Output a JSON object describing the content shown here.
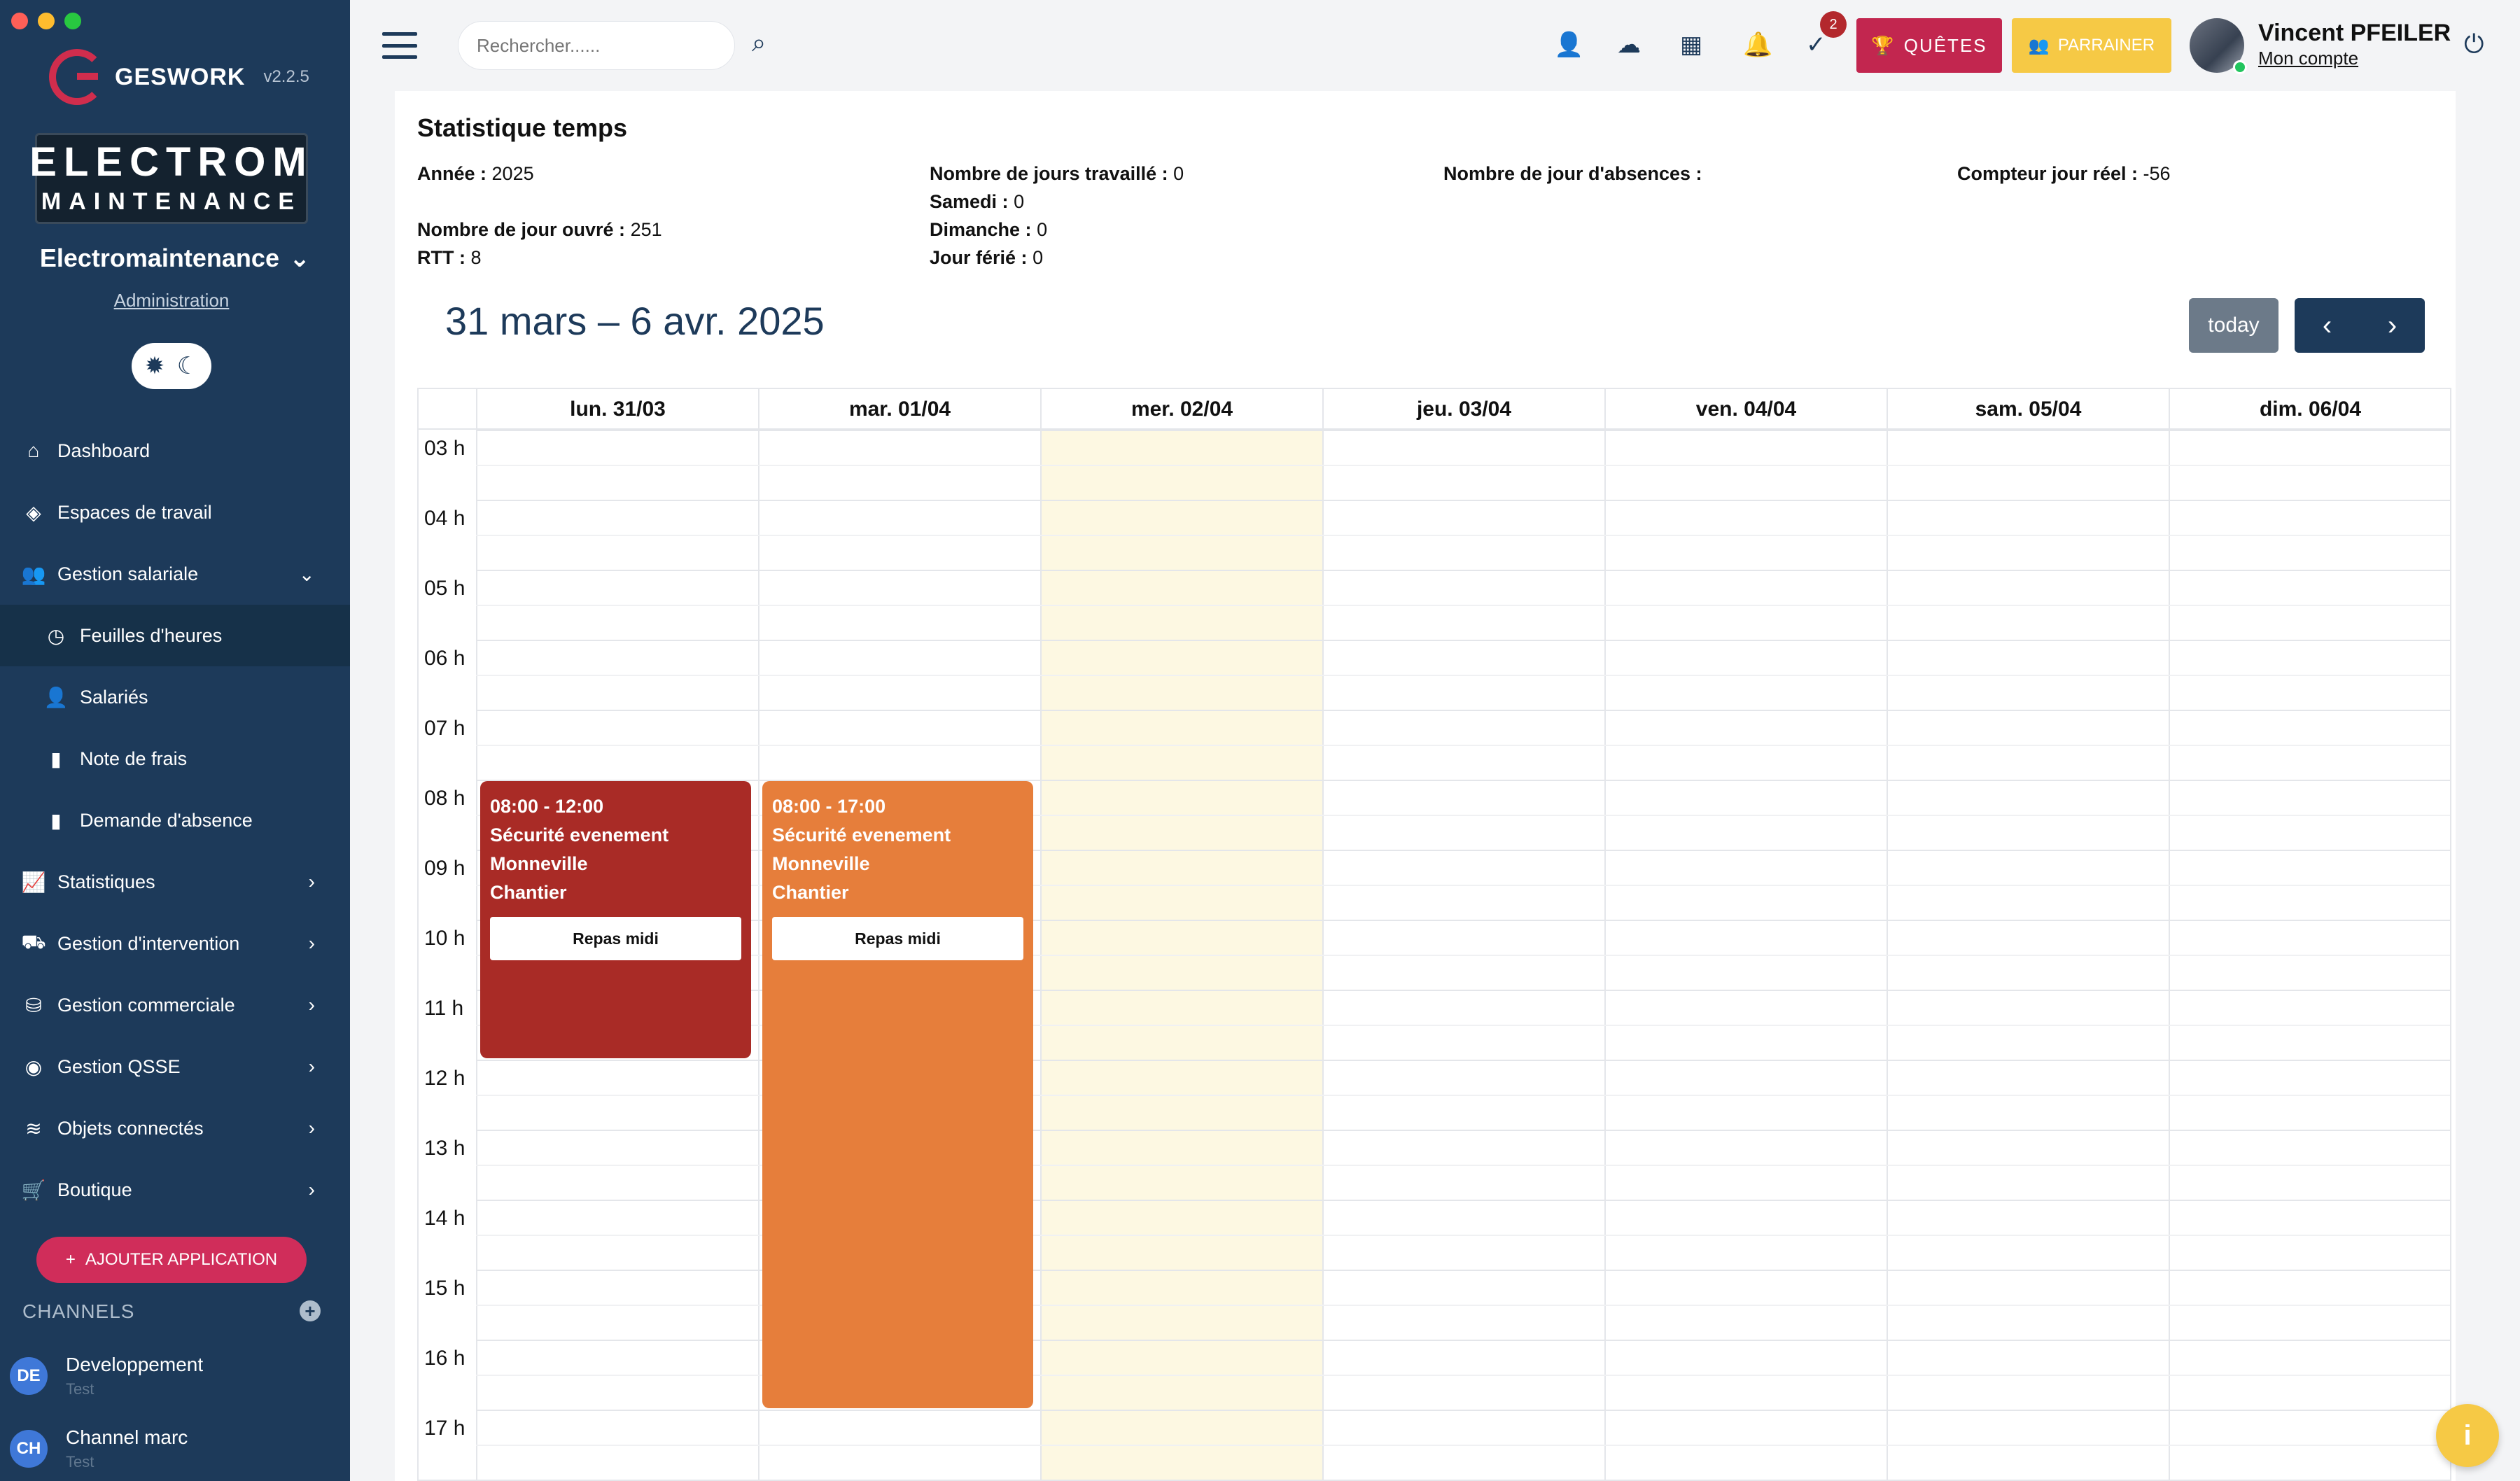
{
  "window": {
    "controls": [
      "#ff5f57",
      "#febc2e",
      "#28c840"
    ]
  },
  "brand": {
    "name": "GESWORK",
    "version": "v2.2.5"
  },
  "company": {
    "logo_line1": "ELECTROM",
    "logo_line2": "MAINTENANCE",
    "name": "Electromaintenance",
    "admin_link": "Administration"
  },
  "sidebar": {
    "items": [
      {
        "label": "Dashboard",
        "icon": "home-icon"
      },
      {
        "label": "Espaces de travail",
        "icon": "cubes-icon"
      },
      {
        "label": "Gestion salariale",
        "icon": "users-icon",
        "expanded": true
      },
      {
        "label": "Feuilles d'heures",
        "icon": "clock-icon",
        "active": true
      },
      {
        "label": "Salariés",
        "icon": "user-icon"
      },
      {
        "label": "Note de frais",
        "icon": "file-icon"
      },
      {
        "label": "Demande d'absence",
        "icon": "file-icon"
      },
      {
        "label": "Statistiques",
        "icon": "chart-icon"
      },
      {
        "label": "Gestion d'intervention",
        "icon": "truck-icon"
      },
      {
        "label": "Gestion commerciale",
        "icon": "coins-icon"
      },
      {
        "label": "Gestion QSSE",
        "icon": "dot-circle-icon"
      },
      {
        "label": "Objets connectés",
        "icon": "wifi-icon"
      },
      {
        "label": "Boutique",
        "icon": "cart-icon"
      }
    ],
    "add_app": "AJOUTER APPLICATION",
    "channels_title": "CHANNELS",
    "channels": [
      {
        "initials": "DE",
        "name": "Developpement",
        "sub": "Test"
      },
      {
        "initials": "CH",
        "name": "Channel marc",
        "sub": "Test"
      }
    ]
  },
  "topbar": {
    "search_placeholder": "Rechercher......",
    "notification_count": "2",
    "quetes": "QUÊTES",
    "parrainer": "PARRAINER",
    "user_name": "Vincent PFEILER",
    "account_link": "Mon compte"
  },
  "stats": {
    "title": "Statistique temps",
    "annee_label": "Année :",
    "annee_value": "2025",
    "jours_ouvre_label": "Nombre de jour ouvré :",
    "jours_ouvre_value": "251",
    "rtt_label": "RTT :",
    "rtt_value": "8",
    "jours_travailles_label": "Nombre de jours travaillé :",
    "jours_travailles_value": "0",
    "samedi_label": "Samedi :",
    "samedi_value": "0",
    "dimanche_label": "Dimanche :",
    "dimanche_value": "0",
    "jour_ferie_label": "Jour férié :",
    "jour_ferie_value": "0",
    "absences_label": "Nombre de jour d'absences :",
    "compteur_label": "Compteur jour réel :",
    "compteur_value": "-56"
  },
  "calendar": {
    "range_title": "31 mars – 6 avr. 2025",
    "today_button": "today",
    "days": [
      "lun. 31/03",
      "mar. 01/04",
      "mer. 02/04",
      "jeu. 03/04",
      "ven. 04/04",
      "sam. 05/04",
      "dim. 06/04"
    ],
    "today_index": 2,
    "hours": [
      "03 h",
      "04 h",
      "05 h",
      "06 h",
      "07 h",
      "08 h",
      "09 h",
      "10 h",
      "11 h",
      "12 h",
      "13 h",
      "14 h",
      "15 h",
      "16 h",
      "17 h"
    ],
    "first_hour": 3,
    "events": [
      {
        "day": 0,
        "start": 8,
        "end": 12,
        "time": "08:00 - 12:00",
        "title": "Sécurité evenement",
        "place": "Monneville",
        "type": "Chantier",
        "meal": "Repas midi",
        "color": "#a92b26"
      },
      {
        "day": 1,
        "start": 8,
        "end": 17,
        "time": "08:00 - 17:00",
        "title": "Sécurité evenement",
        "place": "Monneville",
        "type": "Chantier",
        "meal": "Repas midi",
        "color": "#e67e3b"
      }
    ]
  },
  "colors": {
    "sidebar": "#1d3a5a",
    "accent": "#c2264f",
    "yellow": "#f6c945",
    "today_bg": "#fdf8e2"
  }
}
